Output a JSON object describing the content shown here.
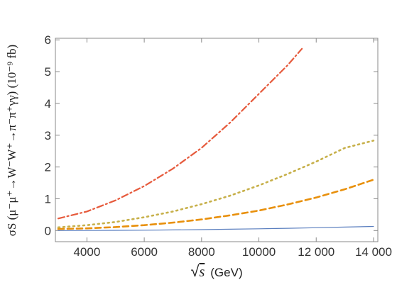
{
  "chart_data": {
    "type": "line",
    "xlabel": "√s (GeV)",
    "x_label_parts": {
      "root": "√",
      "var": "s",
      "unit": "(GeV)"
    },
    "ylabel": "σS (μ⁻μ⁺→W⁻W⁺→π⁻π⁺γγ) (10⁻⁹ fb)",
    "xlim": [
      2900,
      14150
    ],
    "ylim": [
      -0.35,
      6.05
    ],
    "xticks": [
      4000,
      6000,
      8000,
      10000,
      12000,
      14000
    ],
    "xtick_labels": [
      "4000",
      "6000",
      "8000",
      "10000",
      "12 000",
      "14 000"
    ],
    "yticks": [
      0,
      1,
      2,
      3,
      4,
      5,
      6
    ],
    "ytick_labels": [
      "0",
      "1",
      "2",
      "3",
      "4",
      "5",
      "6"
    ],
    "grid": false,
    "series": [
      {
        "color": "#5b7fbf",
        "style": "solid",
        "x": [
          3000,
          4000,
          5000,
          6000,
          7000,
          8000,
          9000,
          10000,
          11000,
          12000,
          13000,
          14000
        ],
        "y": [
          0.0,
          0.002,
          0.006,
          0.012,
          0.02,
          0.03,
          0.042,
          0.056,
          0.072,
          0.09,
          0.11,
          0.13
        ]
      },
      {
        "color": "#e8900c",
        "style": "dashed",
        "x": [
          3000,
          4000,
          5000,
          6000,
          7000,
          8000,
          9000,
          10000,
          11000,
          12000,
          13000,
          14000
        ],
        "y": [
          0.05,
          0.07,
          0.11,
          0.17,
          0.25,
          0.35,
          0.48,
          0.63,
          0.82,
          1.04,
          1.3,
          1.6
        ]
      },
      {
        "color": "#c7b04a",
        "style": "dotted",
        "x": [
          3000,
          4000,
          5000,
          6000,
          7000,
          8000,
          9000,
          10000,
          11000,
          12000,
          13000,
          14000
        ],
        "y": [
          0.1,
          0.17,
          0.27,
          0.42,
          0.6,
          0.83,
          1.1,
          1.42,
          1.78,
          2.17,
          2.6,
          2.83
        ]
      },
      {
        "color": "#e65a3c",
        "style": "dash-dot",
        "x": [
          3000,
          4000,
          5000,
          6000,
          7000,
          8000,
          9000,
          10000,
          11000,
          11500
        ],
        "y": [
          0.38,
          0.6,
          0.95,
          1.4,
          1.95,
          2.6,
          3.4,
          4.3,
          5.2,
          5.72
        ]
      }
    ]
  }
}
